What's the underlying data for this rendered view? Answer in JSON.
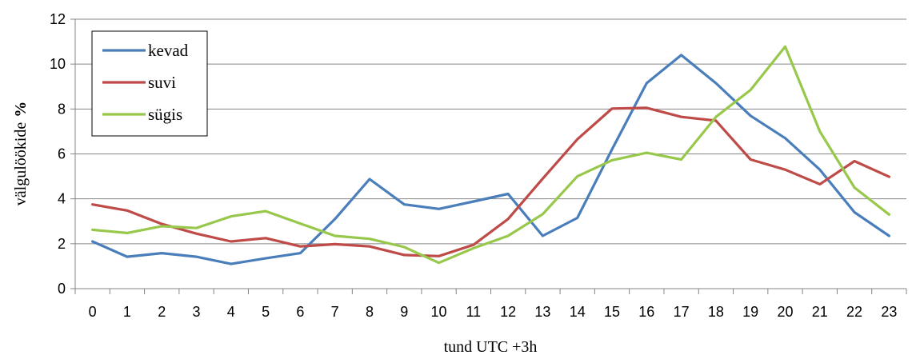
{
  "chart_data": {
    "type": "line",
    "title": "",
    "xlabel": "tund UTC +3h",
    "ylabel": "välgulöökide",
    "ylabel_unit": "%",
    "x": [
      0,
      1,
      2,
      3,
      4,
      5,
      6,
      7,
      8,
      9,
      10,
      11,
      12,
      13,
      14,
      15,
      16,
      17,
      18,
      19,
      20,
      21,
      22,
      23
    ],
    "ylim": [
      0,
      12
    ],
    "yticks": [
      0,
      2,
      4,
      6,
      8,
      10,
      12
    ],
    "grid": true,
    "legend_position": "top-left",
    "series": [
      {
        "name": "kevad",
        "color": "#4a7ebb",
        "values": [
          2.1,
          1.42,
          1.58,
          1.42,
          1.1,
          1.35,
          1.58,
          3.1,
          4.88,
          3.75,
          3.55,
          3.88,
          4.22,
          2.35,
          3.15,
          6.2,
          9.15,
          10.4,
          9.15,
          7.7,
          6.7,
          5.3,
          3.4,
          2.35
        ]
      },
      {
        "name": "suvi",
        "color": "#be4b48",
        "values": [
          3.75,
          3.48,
          2.88,
          2.45,
          2.1,
          2.25,
          1.88,
          1.98,
          1.88,
          1.5,
          1.45,
          1.95,
          3.1,
          4.9,
          6.65,
          8.02,
          8.05,
          7.65,
          7.48,
          5.75,
          5.3,
          4.65,
          5.68,
          4.98
        ]
      },
      {
        "name": "sügis",
        "color": "#98c84b",
        "values": [
          2.62,
          2.48,
          2.78,
          2.7,
          3.22,
          3.45,
          2.9,
          2.35,
          2.22,
          1.85,
          1.15,
          1.8,
          2.35,
          3.32,
          5.0,
          5.72,
          6.05,
          5.75,
          7.65,
          8.85,
          10.78,
          7.0,
          4.5,
          3.3
        ]
      }
    ]
  }
}
